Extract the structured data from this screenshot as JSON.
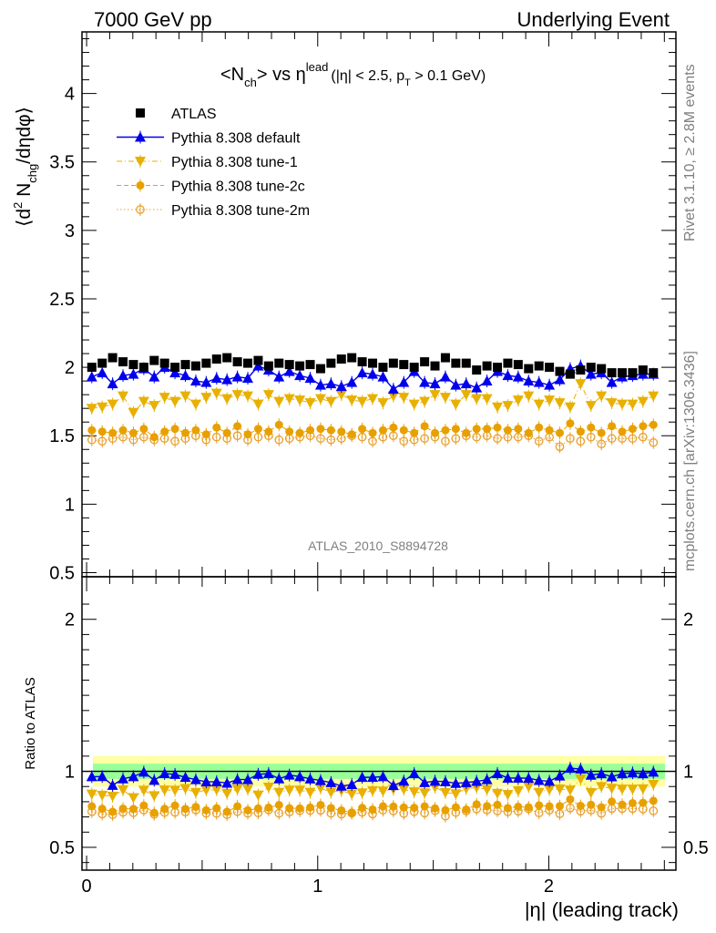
{
  "header": {
    "left": "7000 GeV pp",
    "right": "Underlying Event"
  },
  "side_labels": {
    "rivet": "Rivet 3.1.10, ≥ 2.8M events",
    "mcplots": "mcplots.cern.ch [arXiv:1306.3436]"
  },
  "watermark": "ATLAS_2010_S8894728",
  "chart_data": [
    {
      "type": "scatter",
      "panel": "main",
      "title_main": "<N",
      "title_main_sub": "ch",
      "title_vs": "> vs η",
      "title_sup": "lead",
      "title_cut_a": "(|η| < 2.5, p",
      "title_cut_sub": "T",
      "title_cut_b": " > 0.1 GeV)",
      "ylabel_a": "⟨d",
      "ylabel_sup": "2",
      "ylabel_b": " N",
      "ylabel_sub": "chg",
      "ylabel_c": "/dηdφ⟩",
      "xlabel": "|η| (leading track)",
      "xlim": [
        -0.02,
        2.55
      ],
      "ylim": [
        0.47,
        4.45
      ],
      "yticks": [
        "0.5",
        "1",
        "1.5",
        "2",
        "2.5",
        "3",
        "3.5",
        "4"
      ],
      "xticks": [
        "0",
        "1",
        "2"
      ],
      "legend_position": "top-left",
      "series": [
        {
          "name": "ATLAS",
          "color": "#000000",
          "marker": "square",
          "values": [
            2.0,
            2.03,
            2.07,
            2.04,
            2.02,
            2.0,
            2.05,
            2.03,
            2.0,
            2.02,
            2.01,
            2.03,
            2.06,
            2.07,
            2.04,
            2.03,
            2.05,
            2.01,
            2.03,
            2.02,
            2.01,
            2.02,
            1.99,
            2.03,
            2.06,
            2.07,
            2.04,
            2.03,
            2.0,
            2.03,
            2.02,
            2.0,
            2.04,
            2.01,
            2.07,
            2.03,
            2.03,
            1.98,
            2.01,
            2.0,
            2.03,
            2.02,
            1.99,
            2.01,
            2.0,
            1.97,
            1.95,
            1.98,
            2.0,
            1.99,
            1.96,
            1.96,
            1.96,
            1.98,
            1.96
          ]
        },
        {
          "name": "Pythia 8.308 default",
          "color": "#0000ee",
          "marker": "triangle-up",
          "values": [
            1.93,
            1.96,
            1.88,
            1.94,
            1.95,
            1.99,
            1.93,
            2.0,
            1.96,
            1.94,
            1.9,
            1.89,
            1.92,
            1.91,
            1.93,
            1.92,
            2.01,
            1.98,
            1.93,
            1.97,
            1.94,
            1.92,
            1.87,
            1.88,
            1.86,
            1.89,
            1.96,
            1.95,
            1.93,
            1.84,
            1.89,
            1.97,
            1.89,
            1.88,
            1.93,
            1.87,
            1.88,
            1.85,
            1.9,
            1.97,
            1.94,
            1.93,
            1.9,
            1.89,
            1.87,
            1.91,
            1.99,
            2.01,
            1.95,
            1.96,
            1.89,
            1.93,
            1.94,
            1.95,
            1.95
          ]
        },
        {
          "name": "Pythia 8.308 tune-1",
          "color": "#e8b000",
          "marker": "triangle-down",
          "line": "dashdot",
          "values": [
            1.7,
            1.71,
            1.73,
            1.79,
            1.67,
            1.75,
            1.72,
            1.78,
            1.75,
            1.79,
            1.73,
            1.78,
            1.81,
            1.77,
            1.8,
            1.79,
            1.73,
            1.8,
            1.75,
            1.77,
            1.76,
            1.74,
            1.77,
            1.75,
            1.8,
            1.76,
            1.75,
            1.77,
            1.74,
            1.79,
            1.78,
            1.73,
            1.75,
            1.8,
            1.78,
            1.73,
            1.8,
            1.77,
            1.77,
            1.71,
            1.72,
            1.76,
            1.79,
            1.73,
            1.76,
            1.74,
            1.71,
            1.88,
            1.72,
            1.79,
            1.74,
            1.73,
            1.73,
            1.75,
            1.79
          ]
        },
        {
          "name": "Pythia 8.308 tune-2c",
          "color": "#e8a000",
          "marker": "circle",
          "line": "dashed",
          "values": [
            1.54,
            1.53,
            1.52,
            1.54,
            1.52,
            1.55,
            1.49,
            1.53,
            1.55,
            1.52,
            1.54,
            1.51,
            1.56,
            1.52,
            1.57,
            1.51,
            1.55,
            1.53,
            1.58,
            1.53,
            1.52,
            1.54,
            1.55,
            1.54,
            1.53,
            1.51,
            1.55,
            1.52,
            1.54,
            1.56,
            1.54,
            1.52,
            1.57,
            1.52,
            1.54,
            1.55,
            1.52,
            1.55,
            1.55,
            1.56,
            1.54,
            1.55,
            1.52,
            1.56,
            1.54,
            1.52,
            1.59,
            1.53,
            1.56,
            1.52,
            1.57,
            1.53,
            1.55,
            1.57,
            1.58
          ]
        },
        {
          "name": "Pythia 8.308 tune-2m",
          "color": "#e8a030",
          "marker": "circle-open",
          "line": "dotted",
          "values": [
            1.47,
            1.46,
            1.48,
            1.49,
            1.47,
            1.49,
            1.47,
            1.48,
            1.46,
            1.48,
            1.5,
            1.47,
            1.49,
            1.48,
            1.5,
            1.47,
            1.49,
            1.5,
            1.47,
            1.48,
            1.49,
            1.5,
            1.48,
            1.47,
            1.48,
            1.5,
            1.49,
            1.46,
            1.49,
            1.5,
            1.46,
            1.47,
            1.48,
            1.49,
            1.46,
            1.48,
            1.5,
            1.49,
            1.5,
            1.48,
            1.49,
            1.49,
            1.5,
            1.46,
            1.49,
            1.42,
            1.48,
            1.46,
            1.49,
            1.44,
            1.48,
            1.48,
            1.48,
            1.49,
            1.45
          ]
        }
      ]
    },
    {
      "type": "scatter",
      "panel": "ratio",
      "ylabel": "Ratio to ATLAS",
      "ylim": [
        0.35,
        2.28
      ],
      "yticks": [
        "0.5",
        "1",
        "2"
      ],
      "band_inner": [
        0.95,
        1.05
      ],
      "band_outer": [
        0.9,
        1.1
      ]
    }
  ]
}
